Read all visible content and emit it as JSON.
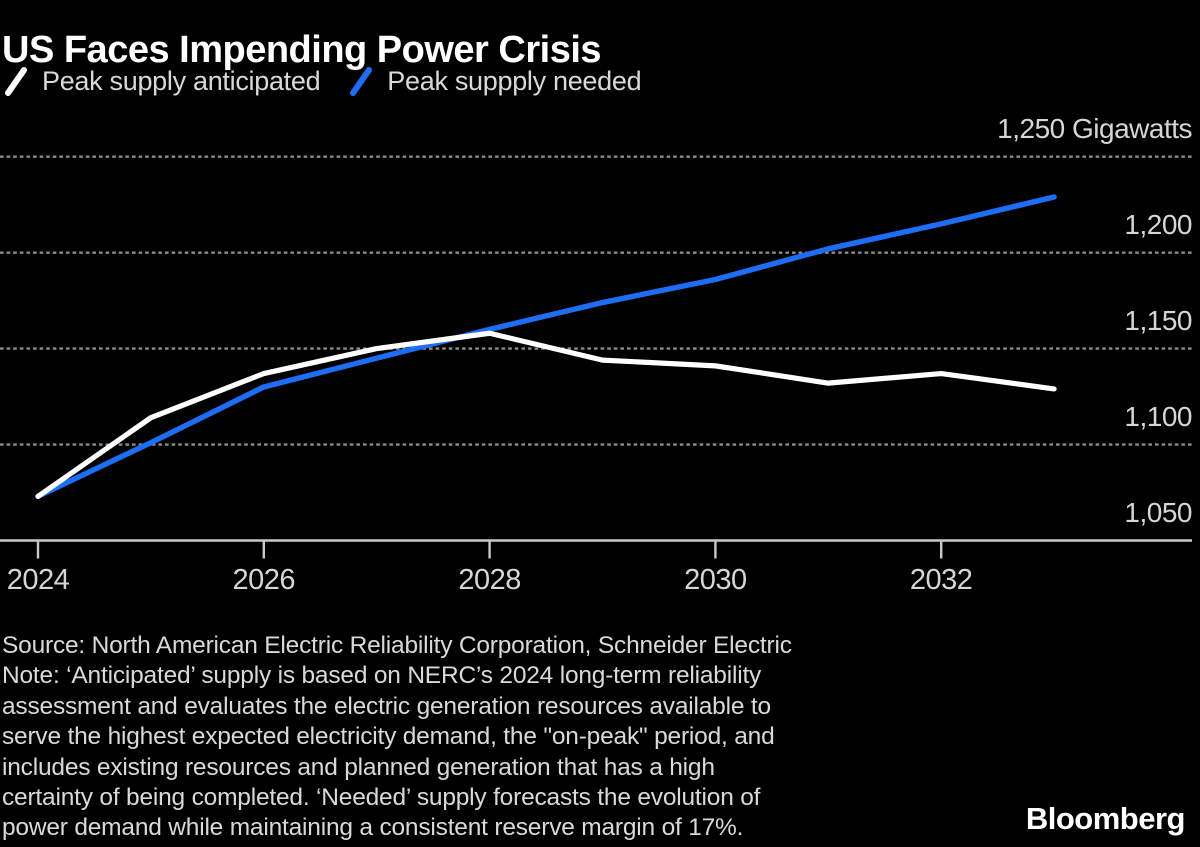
{
  "title": "US Faces Impending Power Crisis",
  "logo_text": "Bloomberg",
  "colors": {
    "background": "#000000",
    "title_text": "#ffffff",
    "legend_text": "#d9d9d9",
    "axis_label_text": "#d6d6d6",
    "footer_text": "#d9d9d9",
    "gridline": "#8a8a8a",
    "axis_line": "#c9c9c9",
    "series_anticipated": "#ffffff",
    "series_needed": "#1e6ef5"
  },
  "footer": {
    "lines": [
      "Source: North American Electric Reliability Corporation, Schneider Electric",
      "Note: ‘Anticipated’ supply is based on NERC’s 2024 long-term reliability",
      "assessment and evaluates the electric generation resources available to",
      "serve the highest expected electricity demand, the \"on-peak\" period, and",
      "includes existing resources and planned generation that has a high",
      "certainty of being completed. ‘Needed’ supply forecasts the evolution of",
      "power demand while maintaining a consistent reserve margin of 17%."
    ]
  },
  "chart_data": {
    "type": "line",
    "title": "US Faces Impending Power Crisis",
    "unit": "Gigawatts",
    "legend_position": "top-left",
    "grid": "horizontal dashed",
    "x": [
      2024,
      2025,
      2026,
      2027,
      2028,
      2029,
      2030,
      2031,
      2032,
      2033
    ],
    "xlim": [
      2024,
      2033
    ],
    "ylim": [
      1050,
      1250
    ],
    "series": [
      {
        "id": "anticipated",
        "name": "Peak supply anticipated",
        "color": "#ffffff",
        "values": [
          1073,
          1114,
          1137,
          1150,
          1158,
          1144,
          1141,
          1132,
          1137,
          1129
        ]
      },
      {
        "id": "needed",
        "name": "Peak suppply needed",
        "color": "#1e6ef5",
        "values": [
          1073,
          1101,
          1130,
          1145,
          1160,
          1174,
          1186,
          1202,
          1215,
          1229
        ]
      }
    ],
    "y_gridlines_dashed": [
      1100,
      1150,
      1200,
      1250
    ],
    "y_baseline": 1050,
    "y_tick_labels": [
      {
        "value": 1050,
        "label": "1,050"
      },
      {
        "value": 1100,
        "label": "1,100"
      },
      {
        "value": 1150,
        "label": "1,150"
      },
      {
        "value": 1200,
        "label": "1,200"
      },
      {
        "value": 1250,
        "label": "1,250 Gigawatts"
      }
    ],
    "x_ticks": [
      {
        "value": 2024,
        "label": "2024"
      },
      {
        "value": 2026,
        "label": "2026"
      },
      {
        "value": 2028,
        "label": "2028"
      },
      {
        "value": 2030,
        "label": "2030"
      },
      {
        "value": 2032,
        "label": "2032"
      }
    ]
  }
}
